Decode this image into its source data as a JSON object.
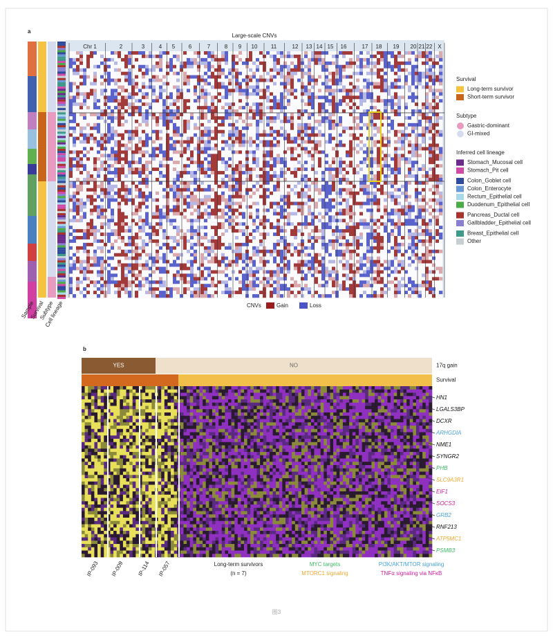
{
  "panel_a": {
    "label": "a",
    "title": "Large-scale CNVs",
    "chromosomes": [
      "Chr 1",
      "2",
      "3",
      "4",
      "5",
      "6",
      "7",
      "8",
      "9",
      "10",
      "11",
      "12",
      "13",
      "14",
      "15",
      "16",
      "17",
      "18",
      "19",
      "20",
      "21",
      "22",
      "X"
    ],
    "strip_labels": [
      "Sample",
      "Survival",
      "Subtype",
      "Cell lineage"
    ],
    "cnv_legend": {
      "title": "CNVs",
      "items": [
        {
          "name": "Gain",
          "color": "#9b1c1c"
        },
        {
          "name": "Loss",
          "color": "#4b55c8"
        }
      ]
    },
    "legend_groups": [
      {
        "title": "Survival",
        "shape": "square",
        "items": [
          {
            "name": "Long-term survivor",
            "color": "#f5c242"
          },
          {
            "name": "Short-term survivor",
            "color": "#c8651b"
          }
        ]
      },
      {
        "title": "Subtype",
        "shape": "circle",
        "items": [
          {
            "name": "Gastric-dominant",
            "color": "#e89ac0"
          },
          {
            "name": "GI-mixed",
            "color": "#d6dcef"
          }
        ]
      },
      {
        "title": "Inferred cell lineage",
        "shape": "square",
        "items": [
          {
            "name": "Stomach_Mucosal cell",
            "color": "#6a2a8c"
          },
          {
            "name": "Stomach_Pit cell",
            "color": "#d04aa8"
          },
          {
            "name": "Colon_Goblet cell",
            "color": "#2f4b9c"
          },
          {
            "name": "Colon_Enterocyte",
            "color": "#6a9ad6"
          },
          {
            "name": "Rectum_Epithelial cell",
            "color": "#a9d8ea"
          },
          {
            "name": "Duodenum_Epithelial cell",
            "color": "#4caa48"
          },
          {
            "name": "Pancreas_Ductal cell",
            "color": "#a8322d"
          },
          {
            "name": "Gallbladder_Epithelial cell",
            "color": "#8a7ed0"
          },
          {
            "name": "Breast_Epithelial cell",
            "color": "#3f9a8a"
          },
          {
            "name": "Other",
            "color": "#c8cfd2"
          }
        ]
      }
    ]
  },
  "panel_b": {
    "label": "b",
    "tracks": [
      {
        "title": "17q gain",
        "segments": [
          {
            "name": "YES",
            "color": "#8a5a32"
          },
          {
            "name": "NO",
            "color": "#efe0cc"
          }
        ]
      },
      {
        "title": "Survival",
        "segments": [
          {
            "color": "#d2691e"
          },
          {
            "color": "#f2c04a"
          }
        ]
      }
    ],
    "genes": [
      {
        "name": "HN1",
        "color": "#111111"
      },
      {
        "name": "LGALS3BP",
        "color": "#111111"
      },
      {
        "name": "DCXR",
        "color": "#111111"
      },
      {
        "name": "ARHGDIA",
        "color": "#4aa3d8"
      },
      {
        "name": "NME1",
        "color": "#111111"
      },
      {
        "name": "SYNGR2",
        "color": "#111111"
      },
      {
        "name": "PHB",
        "color": "#3dbb66"
      },
      {
        "name": "SLC9A3R1",
        "color": "#f0a830"
      },
      {
        "name": "EIF1",
        "color": "#d0209a"
      },
      {
        "name": "SOCS3",
        "color": "#d0209a"
      },
      {
        "name": "GRB2",
        "color": "#4aa3d8"
      },
      {
        "name": "RNF213",
        "color": "#111111"
      },
      {
        "name": "ATP5MC1",
        "color": "#f0a830"
      },
      {
        "name": "PSMB3",
        "color": "#3dbb66"
      }
    ],
    "samples": [
      "IP-093",
      "IP-009",
      "IP-114",
      "IP-057"
    ],
    "long_term": "Long-term survivors",
    "long_term_n": "(n = 7)",
    "pathways": [
      {
        "name": "MYC targets",
        "color": "#3dbb66"
      },
      {
        "name": "PI3K/AKT/MTOR signaling",
        "color": "#4aa3d8"
      },
      {
        "name": "MTORC1 signaling",
        "color": "#f0a830"
      },
      {
        "name": "TNFα signaling via NFκB",
        "color": "#d0209a"
      }
    ]
  },
  "caption": "图3"
}
